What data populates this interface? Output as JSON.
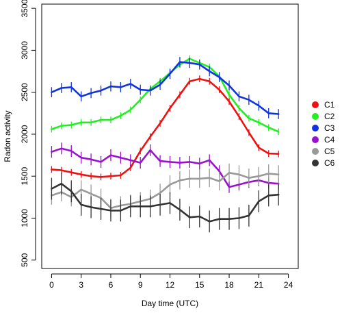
{
  "chart_data": {
    "type": "line",
    "title": "",
    "xlabel": "Day time (UTC)",
    "ylabel": "Radon activity",
    "xlim": [
      -1,
      25
    ],
    "ylim": [
      400,
      3550
    ],
    "xticks": [
      0,
      3,
      6,
      9,
      12,
      15,
      18,
      21,
      24
    ],
    "yticks": [
      500,
      1000,
      1500,
      2000,
      2500,
      3000,
      3500
    ],
    "grid": false,
    "legend_position": "right",
    "x": [
      0,
      1,
      2,
      3,
      4,
      5,
      6,
      7,
      8,
      9,
      10,
      11,
      12,
      13,
      14,
      15,
      16,
      17,
      18,
      19,
      20,
      21,
      22,
      23
    ],
    "series": [
      {
        "name": "C1",
        "color": "#ee1111",
        "values": [
          1580,
          1570,
          1545,
          1520,
          1500,
          1490,
          1500,
          1510,
          1600,
          1800,
          1970,
          2130,
          2310,
          2470,
          2630,
          2660,
          2630,
          2530,
          2390,
          2210,
          2020,
          1840,
          1770,
          1765
        ],
        "errors": [
          40,
          40,
          40,
          40,
          40,
          40,
          40,
          40,
          40,
          40,
          40,
          40,
          40,
          40,
          40,
          40,
          40,
          40,
          40,
          40,
          40,
          40,
          40,
          40
        ]
      },
      {
        "name": "C2",
        "color": "#22ee22",
        "values": [
          2060,
          2100,
          2110,
          2140,
          2140,
          2170,
          2170,
          2220,
          2290,
          2410,
          2540,
          2630,
          2730,
          2830,
          2900,
          2850,
          2800,
          2690,
          2470,
          2310,
          2190,
          2140,
          2080,
          2030
        ],
        "errors": [
          40,
          40,
          40,
          40,
          40,
          40,
          40,
          40,
          40,
          40,
          40,
          40,
          40,
          40,
          40,
          40,
          40,
          40,
          40,
          40,
          40,
          40,
          40,
          40
        ]
      },
      {
        "name": "C3",
        "color": "#1133dd",
        "values": [
          2500,
          2550,
          2560,
          2450,
          2490,
          2520,
          2570,
          2560,
          2600,
          2530,
          2520,
          2590,
          2720,
          2860,
          2850,
          2830,
          2750,
          2680,
          2580,
          2450,
          2410,
          2340,
          2250,
          2240
        ],
        "errors": [
          60,
          60,
          60,
          60,
          60,
          60,
          60,
          60,
          60,
          60,
          60,
          60,
          60,
          60,
          60,
          60,
          60,
          60,
          60,
          60,
          60,
          60,
          60,
          60
        ]
      },
      {
        "name": "C4",
        "color": "#9911cc",
        "values": [
          1790,
          1830,
          1800,
          1720,
          1700,
          1670,
          1750,
          1720,
          1690,
          1660,
          1810,
          1680,
          1670,
          1660,
          1670,
          1650,
          1690,
          1560,
          1370,
          1400,
          1430,
          1450,
          1420,
          1410
        ],
        "errors": [
          70,
          70,
          70,
          70,
          70,
          70,
          70,
          70,
          70,
          70,
          70,
          70,
          70,
          70,
          70,
          70,
          70,
          70,
          70,
          70,
          70,
          70,
          70,
          70
        ]
      },
      {
        "name": "C5",
        "color": "#999999",
        "values": [
          1270,
          1310,
          1250,
          1340,
          1290,
          1240,
          1120,
          1150,
          1170,
          1200,
          1230,
          1300,
          1400,
          1450,
          1470,
          1470,
          1480,
          1440,
          1540,
          1520,
          1480,
          1500,
          1530,
          1520
        ],
        "errors": [
          110,
          110,
          110,
          110,
          110,
          110,
          110,
          110,
          110,
          110,
          110,
          110,
          110,
          110,
          110,
          110,
          110,
          110,
          110,
          110,
          110,
          110,
          110,
          110
        ]
      },
      {
        "name": "C6",
        "color": "#333333",
        "values": [
          1350,
          1410,
          1320,
          1160,
          1130,
          1110,
          1090,
          1090,
          1140,
          1140,
          1140,
          1160,
          1180,
          1100,
          1010,
          1020,
          960,
          990,
          990,
          1000,
          1030,
          1200,
          1270,
          1280
        ],
        "errors": [
          130,
          130,
          130,
          130,
          130,
          130,
          130,
          130,
          130,
          130,
          130,
          130,
          130,
          130,
          130,
          130,
          130,
          130,
          130,
          130,
          130,
          130,
          130,
          130
        ]
      }
    ]
  }
}
